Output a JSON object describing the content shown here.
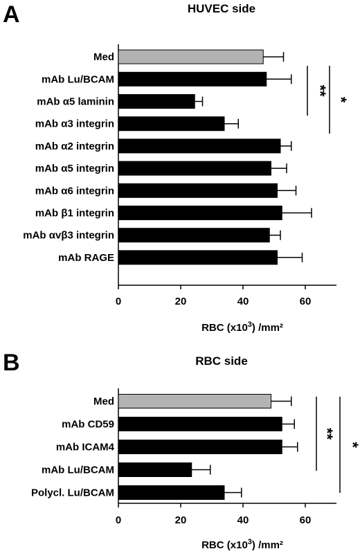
{
  "chart_data": [
    {
      "type": "bar",
      "panel": "A",
      "title": "HUVEC side",
      "xlabel_prefix": "RBC (x10",
      "xlabel_sup": "3",
      "xlabel_suffix": ") /mm²",
      "xlim": [
        0,
        70
      ],
      "xticks": [
        0,
        20,
        40,
        60
      ],
      "colors": {
        "control": "#b3b3b3",
        "treatment": "#000000"
      },
      "categories": [
        "Med",
        "mAb Lu/BCAM",
        "mAb α5 laminin",
        "mAb α3 integrin",
        "mAb α2 integrin",
        "mAb α5 integrin",
        "mAb α6 integrin",
        "mAb β1 integrin",
        "mAb αvβ3 integrin",
        "mAb RAGE"
      ],
      "values": [
        46.5,
        47.5,
        24.5,
        34,
        52,
        49,
        51,
        52.5,
        48.5,
        51
      ],
      "errors": [
        6.5,
        8,
        2.5,
        4.5,
        3.5,
        5,
        6,
        9.5,
        3.5,
        8
      ],
      "significance": [
        {
          "label": "**",
          "from": "Med",
          "to": "mAb α5 laminin"
        },
        {
          "label": "*",
          "from": "Med",
          "to": "mAb α3 integrin"
        }
      ]
    },
    {
      "type": "bar",
      "panel": "B",
      "title": "RBC side",
      "xlabel_prefix": "RBC (x10",
      "xlabel_sup": "3",
      "xlabel_suffix": ") /mm²",
      "xlim": [
        0,
        70
      ],
      "xticks": [
        0,
        20,
        40,
        60
      ],
      "colors": {
        "control": "#b3b3b3",
        "treatment": "#000000"
      },
      "categories": [
        "Med",
        "mAb CD59",
        "mAb ICAM4",
        "mAb Lu/BCAM",
        "Polycl. Lu/BCAM"
      ],
      "values": [
        49,
        52.5,
        52.5,
        23.5,
        34
      ],
      "errors": [
        6.5,
        4,
        5,
        6,
        5.5
      ],
      "significance": [
        {
          "label": "**",
          "from": "Med",
          "to": "mAb Lu/BCAM"
        },
        {
          "label": "*",
          "from": "Med",
          "to": "Polycl. Lu/BCAM"
        }
      ]
    }
  ]
}
